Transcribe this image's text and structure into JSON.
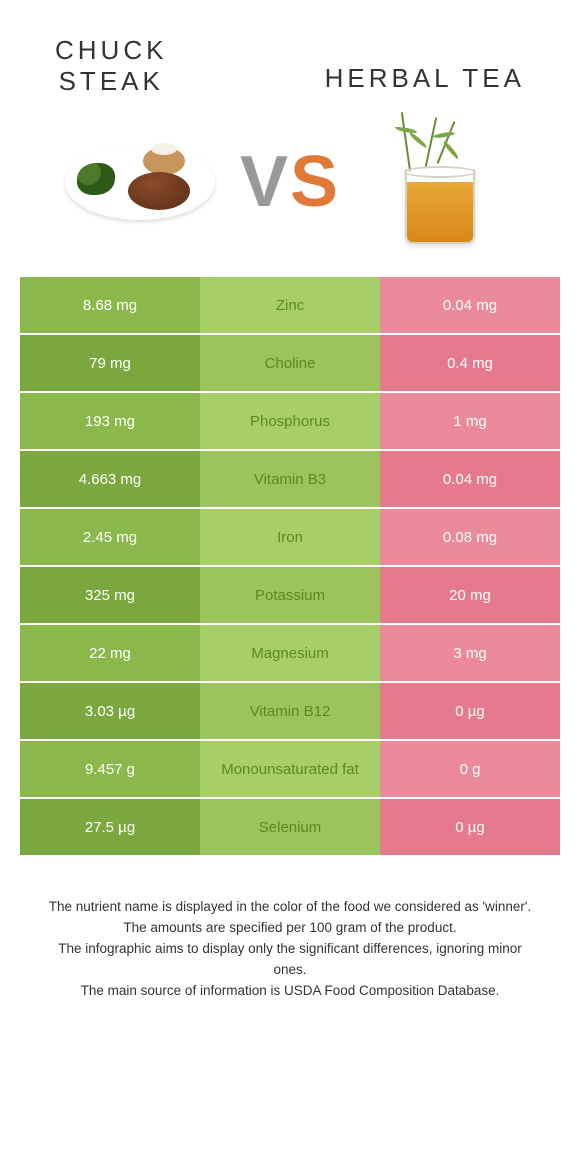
{
  "colors": {
    "left_bg": "#8bb84a",
    "left_alt_bg": "#7aa83f",
    "mid_bg": "#a8ce6a",
    "mid_alt_bg": "#9cc45c",
    "right_bg": "#ea8a9a",
    "right_alt_bg": "#e57a8c",
    "nutrient_text": "#5a8a22"
  },
  "header": {
    "left_title": "CHUCK\nSTEAK",
    "right_title": "HERBAL TEA",
    "vs_v": "V",
    "vs_s": "S"
  },
  "rows": [
    {
      "nutrient": "Zinc",
      "left": "8.68 mg",
      "right": "0.04 mg"
    },
    {
      "nutrient": "Choline",
      "left": "79 mg",
      "right": "0.4 mg"
    },
    {
      "nutrient": "Phosphorus",
      "left": "193 mg",
      "right": "1 mg"
    },
    {
      "nutrient": "Vitamin B3",
      "left": "4.663 mg",
      "right": "0.04 mg"
    },
    {
      "nutrient": "Iron",
      "left": "2.45 mg",
      "right": "0.08 mg"
    },
    {
      "nutrient": "Potassium",
      "left": "325 mg",
      "right": "20 mg"
    },
    {
      "nutrient": "Magnesium",
      "left": "22 mg",
      "right": "3 mg"
    },
    {
      "nutrient": "Vitamin B12",
      "left": "3.03 µg",
      "right": "0 µg"
    },
    {
      "nutrient": "Monounsaturated fat",
      "left": "9.457 g",
      "right": "0 g"
    },
    {
      "nutrient": "Selenium",
      "left": "27.5 µg",
      "right": "0 µg"
    }
  ],
  "footer": {
    "line1": "The nutrient name is displayed in the color of the food we considered as 'winner'.",
    "line2": "The amounts are specified per 100 gram of the product.",
    "line3": "The infographic aims to display only the significant differences, ignoring minor ones.",
    "line4": "The main source of information is USDA Food Composition Database."
  }
}
